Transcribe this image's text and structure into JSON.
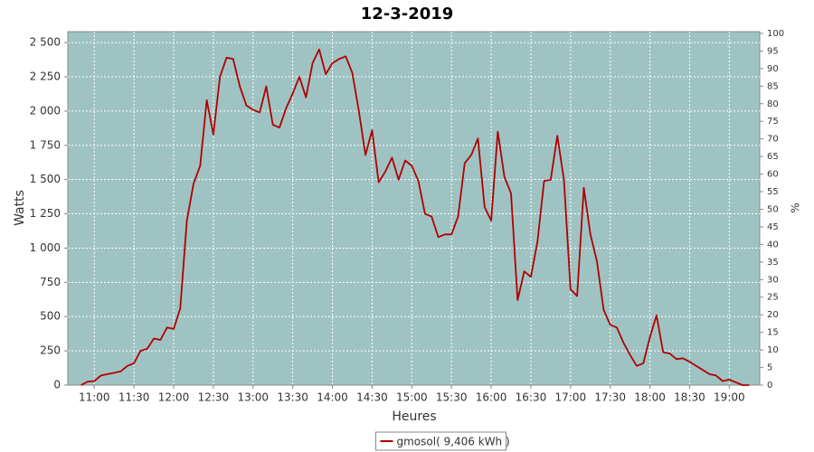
{
  "chart_data": {
    "type": "line",
    "title": "12-3-2019",
    "x_label": "Heures",
    "y_label": "Watts",
    "y2_label": "%",
    "x": [
      "10:50",
      "10:55",
      "11:00",
      "11:05",
      "11:10",
      "11:15",
      "11:20",
      "11:25",
      "11:30",
      "11:35",
      "11:40",
      "11:45",
      "11:50",
      "11:55",
      "12:00",
      "12:05",
      "12:10",
      "12:15",
      "12:20",
      "12:25",
      "12:30",
      "12:35",
      "12:40",
      "12:45",
      "12:50",
      "12:55",
      "13:00",
      "13:05",
      "13:10",
      "13:15",
      "13:20",
      "13:25",
      "13:30",
      "13:35",
      "13:40",
      "13:45",
      "13:50",
      "13:55",
      "14:00",
      "14:05",
      "14:10",
      "14:15",
      "14:20",
      "14:25",
      "14:30",
      "14:35",
      "14:40",
      "14:45",
      "14:50",
      "14:55",
      "15:00",
      "15:05",
      "15:10",
      "15:15",
      "15:20",
      "15:25",
      "15:30",
      "15:35",
      "15:40",
      "15:45",
      "15:50",
      "15:55",
      "16:00",
      "16:05",
      "16:10",
      "16:15",
      "16:20",
      "16:25",
      "16:30",
      "16:35",
      "16:40",
      "16:45",
      "16:50",
      "16:55",
      "17:00",
      "17:05",
      "17:10",
      "17:15",
      "17:20",
      "17:25",
      "17:30",
      "17:35",
      "17:40",
      "17:45",
      "17:50",
      "17:55",
      "18:00",
      "18:05",
      "18:10",
      "18:15",
      "18:20",
      "18:25",
      "18:30",
      "18:35",
      "18:40",
      "18:45",
      "18:50",
      "18:55",
      "19:00",
      "19:05",
      "19:10",
      "19:15"
    ],
    "series": [
      {
        "name": "gmosol( 9,406 kWh )",
        "color": "#b00000",
        "values": [
          0,
          25,
          30,
          70,
          80,
          90,
          100,
          140,
          160,
          250,
          265,
          340,
          330,
          420,
          410,
          560,
          1200,
          1470,
          1600,
          2080,
          1830,
          2250,
          2390,
          2380,
          2180,
          2040,
          2010,
          1990,
          2180,
          1900,
          1880,
          2020,
          2130,
          2250,
          2100,
          2350,
          2450,
          2270,
          2350,
          2380,
          2400,
          2280,
          2000,
          1680,
          1860,
          1480,
          1560,
          1660,
          1500,
          1640,
          1600,
          1490,
          1250,
          1230,
          1080,
          1100,
          1100,
          1230,
          1620,
          1680,
          1800,
          1300,
          1200,
          1850,
          1520,
          1400,
          620,
          830,
          790,
          1050,
          1490,
          1500,
          1820,
          1500,
          700,
          650,
          1440,
          1100,
          900,
          550,
          440,
          420,
          310,
          220,
          140,
          160,
          350,
          510,
          240,
          230,
          190,
          195,
          170,
          140,
          110,
          80,
          70,
          30,
          40,
          20,
          0,
          0
        ]
      }
    ],
    "xlim": [
      "10:40",
      "19:23"
    ],
    "xticks": [
      "11:00",
      "11:30",
      "12:00",
      "12:30",
      "13:00",
      "13:30",
      "14:00",
      "14:30",
      "15:00",
      "15:30",
      "16:00",
      "16:30",
      "17:00",
      "17:30",
      "18:00",
      "18:30",
      "19:00"
    ],
    "ylim": [
      0,
      2580
    ],
    "yticks": [
      0,
      250,
      500,
      750,
      {
        "value": 1000,
        "label": "1 000"
      },
      {
        "value": 1250,
        "label": "1 250"
      },
      {
        "value": 1500,
        "label": "1 500"
      },
      {
        "value": 1750,
        "label": "1 750"
      },
      {
        "value": 2000,
        "label": "2 000"
      },
      {
        "value": 2250,
        "label": "2 250"
      },
      {
        "value": 2500,
        "label": "2 500"
      }
    ],
    "y2lim": [
      0,
      100.5
    ],
    "y2ticks": [
      0,
      5,
      10,
      15,
      20,
      25,
      30,
      35,
      40,
      45,
      50,
      55,
      60,
      65,
      70,
      75,
      80,
      85,
      90,
      95,
      100
    ],
    "grid": true,
    "background": "#9fc3c3",
    "legend": "bottom"
  }
}
